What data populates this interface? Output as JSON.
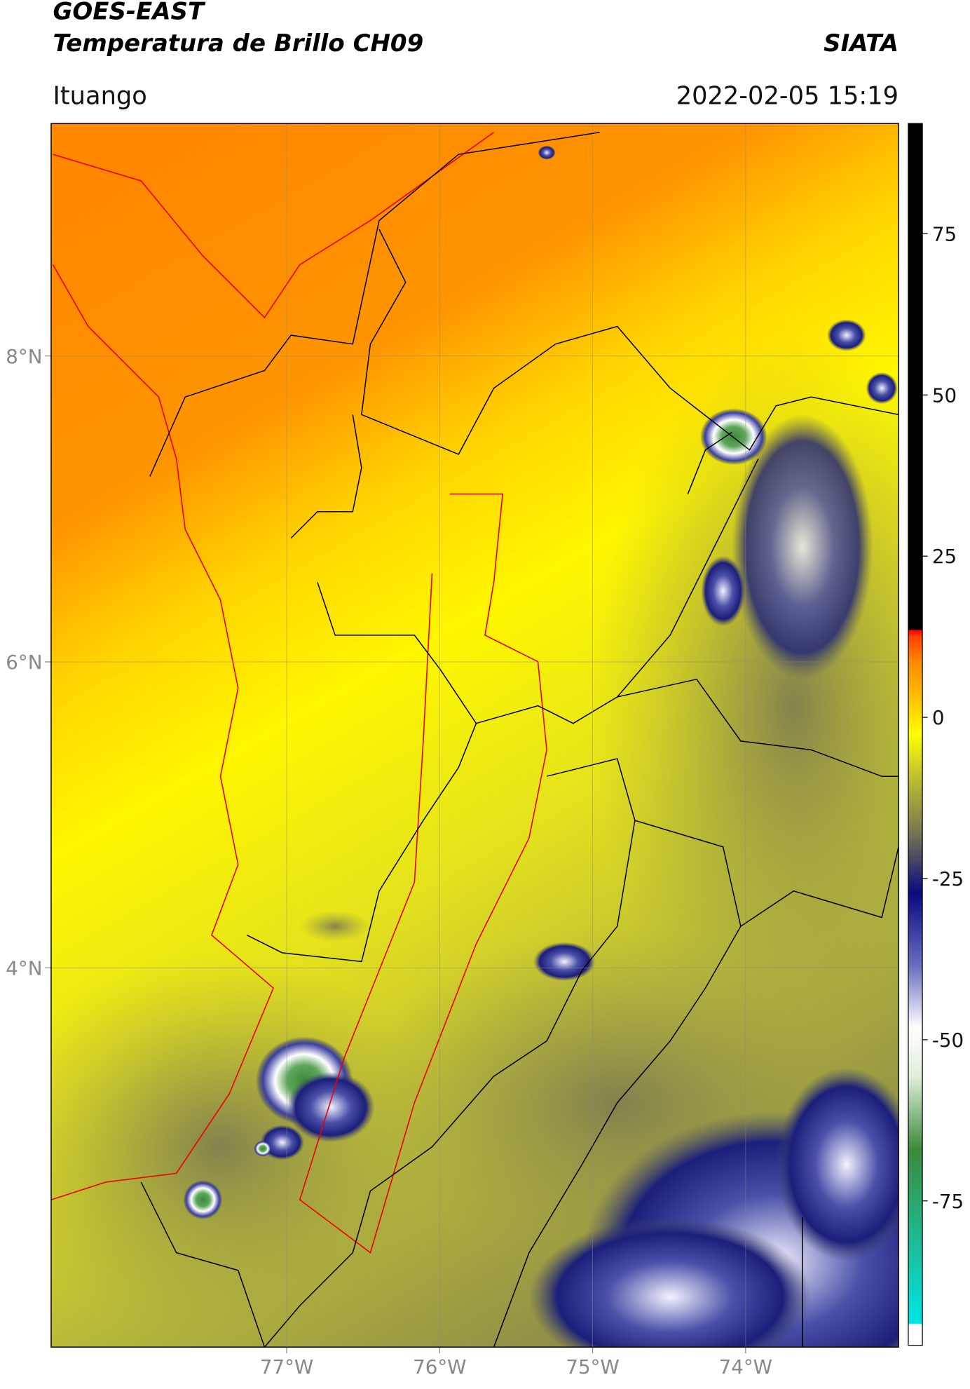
{
  "header": {
    "title": "GOES-EAST",
    "subtitle": "Temperatura de Brillo CH09",
    "source": "SIATA",
    "region": "Ituango",
    "timestamp": "2022-02-05 15:19"
  },
  "map": {
    "xlim": [
      -78.54,
      -73.0
    ],
    "ylim": [
      1.52,
      9.52
    ],
    "xticks": [
      {
        "value": -77,
        "label": "77°W"
      },
      {
        "value": -76,
        "label": "76°W"
      },
      {
        "value": -75,
        "label": "75°W"
      },
      {
        "value": -74,
        "label": "74°W"
      }
    ],
    "yticks": [
      {
        "value": 8,
        "label": "8°N"
      },
      {
        "value": 6,
        "label": "6°N"
      },
      {
        "value": 4,
        "label": "4°N"
      }
    ]
  },
  "colorbar": {
    "clim": [
      -97.4,
      92.1
    ],
    "ticks": [
      75,
      50,
      25,
      0,
      -25,
      -50,
      -75
    ]
  }
}
